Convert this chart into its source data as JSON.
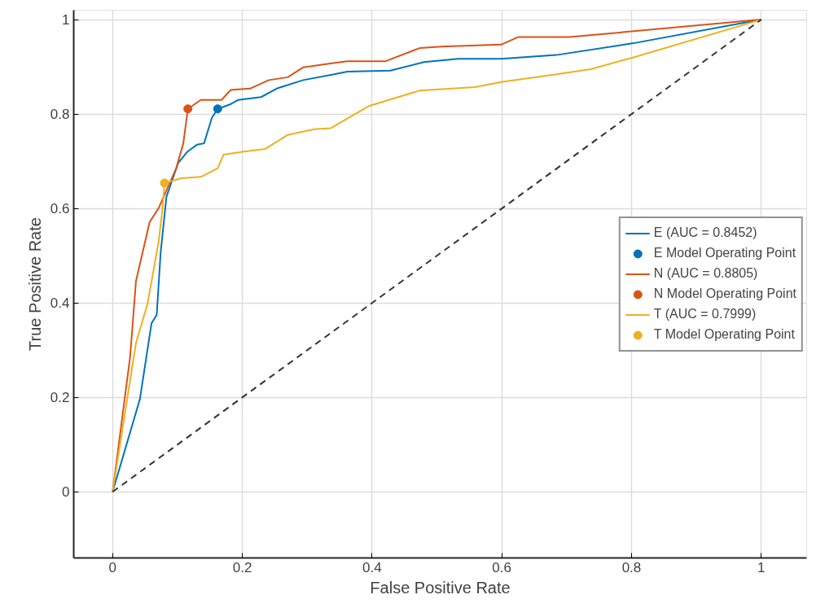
{
  "chart_data": {
    "type": "line",
    "xlabel": "False Positive Rate",
    "ylabel": "True Positive Rate",
    "xlim": [
      -0.06,
      1.07
    ],
    "ylim": [
      -0.14,
      1.02
    ],
    "xticks": [
      0,
      0.2,
      0.4,
      0.6,
      0.8,
      1
    ],
    "yticks": [
      0,
      0.2,
      0.4,
      0.6,
      0.8,
      1
    ],
    "grid": true,
    "legend": "right",
    "series": [
      {
        "name": "E (AUC = 0.8452)",
        "type": "line",
        "color": "#0072bd",
        "line_style": "solid",
        "x": [
          0,
          0.042,
          0.06,
          0.068,
          0.074,
          0.083,
          0.101,
          0.115,
          0.13,
          0.141,
          0.153,
          0.162,
          0.182,
          0.194,
          0.229,
          0.253,
          0.294,
          0.34,
          0.362,
          0.428,
          0.48,
          0.533,
          0.599,
          0.684,
          0.803,
          1
        ],
        "values": [
          0,
          0.196,
          0.357,
          0.375,
          0.506,
          0.625,
          0.696,
          0.72,
          0.735,
          0.738,
          0.792,
          0.811,
          0.821,
          0.83,
          0.836,
          0.854,
          0.872,
          0.884,
          0.89,
          0.892,
          0.91,
          0.917,
          0.917,
          0.925,
          0.95,
          1
        ]
      },
      {
        "name": "E Model Operating Point",
        "type": "scatter",
        "marker": "circle",
        "color": "#0072bd",
        "x": [
          0.162
        ],
        "values": [
          0.811
        ]
      },
      {
        "name": "N (AUC = 0.8805)",
        "type": "line",
        "color": "#d95319",
        "line_style": "solid",
        "x": [
          0,
          0.027,
          0.036,
          0.057,
          0.071,
          0.098,
          0.109,
          0.116,
          0.136,
          0.168,
          0.182,
          0.212,
          0.241,
          0.27,
          0.294,
          0.34,
          0.362,
          0.421,
          0.474,
          0.507,
          0.599,
          0.625,
          0.704,
          1
        ],
        "values": [
          0,
          0.286,
          0.446,
          0.571,
          0.601,
          0.685,
          0.738,
          0.811,
          0.83,
          0.83,
          0.851,
          0.854,
          0.872,
          0.878,
          0.899,
          0.908,
          0.912,
          0.912,
          0.94,
          0.943,
          0.947,
          0.963,
          0.963,
          1
        ]
      },
      {
        "name": "N Model Operating Point",
        "type": "scatter",
        "marker": "circle",
        "color": "#d95319",
        "x": [
          0.116
        ],
        "values": [
          0.811
        ]
      },
      {
        "name": "T (AUC = 0.7999)",
        "type": "line",
        "color": "#edb120",
        "line_style": "solid",
        "x": [
          0,
          0.036,
          0.054,
          0.071,
          0.077,
          0.08,
          0.106,
          0.136,
          0.162,
          0.171,
          0.2,
          0.235,
          0.27,
          0.311,
          0.336,
          0.395,
          0.474,
          0.559,
          0.599,
          0.678,
          0.737,
          0.803,
          1
        ],
        "values": [
          0,
          0.315,
          0.399,
          0.53,
          0.601,
          0.654,
          0.664,
          0.667,
          0.685,
          0.714,
          0.72,
          0.726,
          0.756,
          0.768,
          0.77,
          0.817,
          0.85,
          0.857,
          0.868,
          0.883,
          0.895,
          0.92,
          1
        ]
      },
      {
        "name": "T Model Operating Point",
        "type": "scatter",
        "marker": "circle",
        "color": "#edb120",
        "x": [
          0.08
        ],
        "values": [
          0.654
        ]
      },
      {
        "type": "line",
        "color": "#333333",
        "line_style": "dashed",
        "x": [
          0,
          1
        ],
        "values": [
          0,
          1
        ]
      }
    ]
  }
}
